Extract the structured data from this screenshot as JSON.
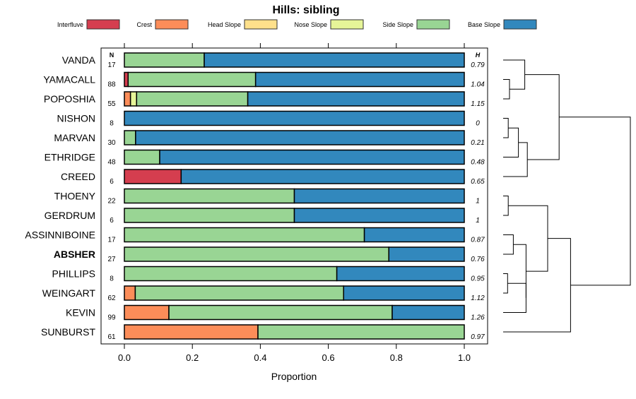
{
  "chart_data": {
    "type": "bar",
    "orientation": "horizontal-stacked",
    "title": "Hills: sibling",
    "xlabel": "Proportion",
    "xlim": [
      0,
      1
    ],
    "xticks": [
      "0.0",
      "0.2",
      "0.4",
      "0.6",
      "0.8",
      "1.0"
    ],
    "xtick_values": [
      0,
      0.2,
      0.4,
      0.6,
      0.8,
      1.0
    ],
    "legend_position": "top",
    "n_header": "N",
    "h_header": "H",
    "series": [
      {
        "name": "Interfluve",
        "color": "#d53e4f"
      },
      {
        "name": "Crest",
        "color": "#fc8d59"
      },
      {
        "name": "Head Slope",
        "color": "#fee08b"
      },
      {
        "name": "Nose Slope",
        "color": "#e6f598"
      },
      {
        "name": "Side Slope",
        "color": "#99d594"
      },
      {
        "name": "Base Slope",
        "color": "#3288bd"
      }
    ],
    "categories": [
      {
        "label": "VANDA",
        "bold": false,
        "n": "17",
        "h": "0.79",
        "values": [
          0,
          0,
          0,
          0,
          0.235,
          0.765
        ]
      },
      {
        "label": "YAMACALL",
        "bold": false,
        "n": "88",
        "h": "1.04",
        "values": [
          0.011,
          0,
          0,
          0,
          0.375,
          0.614
        ]
      },
      {
        "label": "POPOSHIA",
        "bold": false,
        "n": "55",
        "h": "1.15",
        "values": [
          0,
          0.018,
          0,
          0.018,
          0.327,
          0.637
        ]
      },
      {
        "label": "NISHON",
        "bold": false,
        "n": "8",
        "h": "0",
        "values": [
          0,
          0,
          0,
          0,
          0,
          1
        ]
      },
      {
        "label": "MARVAN",
        "bold": false,
        "n": "30",
        "h": "0.21",
        "values": [
          0,
          0,
          0,
          0,
          0.033,
          0.967
        ]
      },
      {
        "label": "ETHRIDGE",
        "bold": false,
        "n": "48",
        "h": "0.48",
        "values": [
          0,
          0,
          0,
          0,
          0.104,
          0.896
        ]
      },
      {
        "label": "CREED",
        "bold": false,
        "n": "6",
        "h": "0.65",
        "values": [
          0.167,
          0,
          0,
          0,
          0,
          0.833
        ]
      },
      {
        "label": "THOENY",
        "bold": false,
        "n": "22",
        "h": "1",
        "values": [
          0,
          0,
          0,
          0,
          0.5,
          0.5
        ]
      },
      {
        "label": "GERDRUM",
        "bold": false,
        "n": "6",
        "h": "1",
        "values": [
          0,
          0,
          0,
          0,
          0.5,
          0.5
        ]
      },
      {
        "label": "ASSINNIBOINE",
        "bold": false,
        "n": "17",
        "h": "0.87",
        "values": [
          0,
          0,
          0,
          0,
          0.706,
          0.294
        ]
      },
      {
        "label": "ABSHER",
        "bold": true,
        "n": "27",
        "h": "0.76",
        "values": [
          0,
          0,
          0,
          0,
          0.778,
          0.222
        ]
      },
      {
        "label": "PHILLIPS",
        "bold": false,
        "n": "8",
        "h": "0.95",
        "values": [
          0,
          0,
          0,
          0,
          0.625,
          0.375
        ]
      },
      {
        "label": "WEINGART",
        "bold": false,
        "n": "62",
        "h": "1.12",
        "values": [
          0,
          0.032,
          0,
          0,
          0.613,
          0.355
        ]
      },
      {
        "label": "KEVIN",
        "bold": false,
        "n": "99",
        "h": "1.26",
        "values": [
          0,
          0.131,
          0,
          0,
          0.657,
          0.212
        ]
      },
      {
        "label": "SUNBURST",
        "bold": false,
        "n": "61",
        "h": "0.97",
        "values": [
          0,
          0.393,
          0,
          0,
          0.607,
          0
        ]
      }
    ],
    "dendrogram": {
      "merges": [
        {
          "a": 1,
          "b": 2,
          "height": 0.05
        },
        {
          "a": 0,
          "b": "m0",
          "height": 0.17
        },
        {
          "a": 3,
          "b": 4,
          "height": 0.04
        },
        {
          "a": "m2",
          "b": 5,
          "height": 0.12
        },
        {
          "a": "m3",
          "b": 6,
          "height": 0.19
        },
        {
          "a": "m1",
          "b": "m4",
          "height": 0.44
        },
        {
          "a": 7,
          "b": 8,
          "height": 0.04
        },
        {
          "a": 9,
          "b": 10,
          "height": 0.08
        },
        {
          "a": 11,
          "b": 12,
          "height": 0.035
        },
        {
          "a": "m8",
          "b": 13,
          "height": 0.18
        },
        {
          "a": "m7",
          "b": "m9",
          "height": 0.18
        },
        {
          "a": "m6",
          "b": "m10",
          "height": 0.35
        },
        {
          "a": "m11",
          "b": 14,
          "height": 0.53
        },
        {
          "a": "m5",
          "b": "m12",
          "height": 1.0
        }
      ]
    }
  }
}
